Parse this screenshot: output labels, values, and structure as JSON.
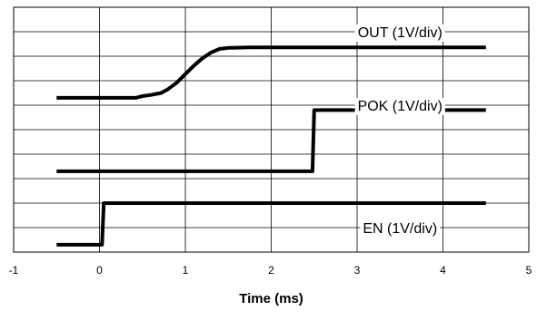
{
  "chart_data": {
    "type": "line",
    "xlabel": "Time (ms)",
    "xlim": [
      -1,
      5
    ],
    "x_ticks": [
      "-1",
      "0",
      "1",
      "2",
      "3",
      "4",
      "5"
    ],
    "y_divisions": 10,
    "grid": true,
    "series": [
      {
        "name": "OUT (1V/div)",
        "points": [
          [
            -0.5,
            6.3
          ],
          [
            0.42,
            6.3
          ],
          [
            0.5,
            6.37
          ],
          [
            0.6,
            6.42
          ],
          [
            0.72,
            6.5
          ],
          [
            0.8,
            6.66
          ],
          [
            0.9,
            6.92
          ],
          [
            1.0,
            7.27
          ],
          [
            1.1,
            7.62
          ],
          [
            1.2,
            7.92
          ],
          [
            1.3,
            8.15
          ],
          [
            1.4,
            8.3
          ],
          [
            1.5,
            8.34
          ],
          [
            1.75,
            8.36
          ],
          [
            4.5,
            8.36
          ]
        ]
      },
      {
        "name": "POK (1V/div)",
        "points": [
          [
            -0.5,
            3.3
          ],
          [
            2.48,
            3.3
          ],
          [
            2.5,
            5.8
          ],
          [
            4.5,
            5.8
          ]
        ]
      },
      {
        "name": "EN (1V/div)",
        "points": [
          [
            -0.5,
            0.3
          ],
          [
            0.03,
            0.3
          ],
          [
            0.05,
            2.0
          ],
          [
            4.5,
            2.0
          ]
        ]
      }
    ],
    "labels": [
      {
        "text": "OUT (1V/div)",
        "series": "OUT (1V/div)"
      },
      {
        "text": "POK (1V/div)",
        "series": "POK (1V/div)"
      },
      {
        "text": "EN (1V/div)",
        "series": "EN (1V/div)"
      }
    ]
  }
}
